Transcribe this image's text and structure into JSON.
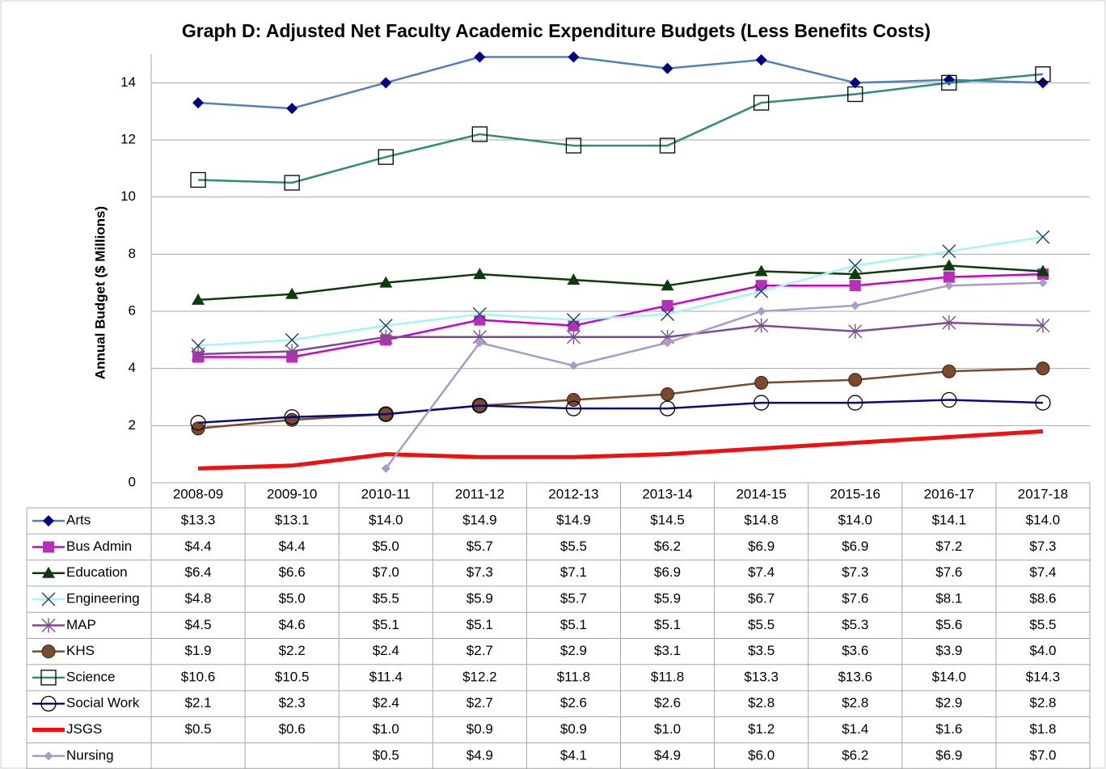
{
  "chart_data": {
    "type": "line",
    "title": "Graph D: Adjusted Net Faculty Academic Expenditure Budgets (Less Benefits Costs)",
    "y_label": "Annual Budget ($ Millions)",
    "categories": [
      "2008-09",
      "2009-10",
      "2010-11",
      "2011-12",
      "2012-13",
      "2013-14",
      "2014-15",
      "2015-16",
      "2016-17",
      "2017-18"
    ],
    "ylim": [
      0,
      15
    ],
    "yticks": [
      0,
      2,
      4,
      6,
      8,
      10,
      12,
      14
    ],
    "grid": true,
    "series": [
      {
        "name": "Arts",
        "color": "#4f81bd",
        "marker": "diamond",
        "marker_color": "#000080",
        "values": [
          13.3,
          13.1,
          14.0,
          14.9,
          14.9,
          14.5,
          14.8,
          14.0,
          14.1,
          14.0
        ],
        "value_labels": [
          "$13.3",
          "$13.1",
          "$14.0",
          "$14.9",
          "$14.9",
          "$14.5",
          "$14.8",
          "$14.0",
          "$14.1",
          "$14.0"
        ]
      },
      {
        "name": "Bus Admin",
        "color": "#cc00cc",
        "marker": "square",
        "marker_color": "#b530b5",
        "values": [
          4.4,
          4.4,
          5.0,
          5.7,
          5.5,
          6.2,
          6.9,
          6.9,
          7.2,
          7.3
        ],
        "value_labels": [
          "$4.4",
          "$4.4",
          "$5.0",
          "$5.7",
          "$5.5",
          "$6.2",
          "$6.9",
          "$6.9",
          "$7.2",
          "$7.3"
        ]
      },
      {
        "name": "Education",
        "color": "#0d3b0d",
        "marker": "triangle",
        "marker_color": "#0d3b0d",
        "values": [
          6.4,
          6.6,
          7.0,
          7.3,
          7.1,
          6.9,
          7.4,
          7.3,
          7.6,
          7.4
        ],
        "value_labels": [
          "$6.4",
          "$6.6",
          "$7.0",
          "$7.3",
          "$7.1",
          "$6.9",
          "$7.4",
          "$7.3",
          "$7.6",
          "$7.4"
        ]
      },
      {
        "name": "Engineering",
        "color": "#a6f4f4",
        "marker": "x",
        "marker_color": "#1f3f5f",
        "values": [
          4.8,
          5.0,
          5.5,
          5.9,
          5.7,
          5.9,
          6.7,
          7.6,
          8.1,
          8.6
        ],
        "value_labels": [
          "$4.8",
          "$5.0",
          "$5.5",
          "$5.9",
          "$5.7",
          "$5.9",
          "$6.7",
          "$7.6",
          "$8.1",
          "$8.6"
        ]
      },
      {
        "name": "MAP",
        "color": "#7d4b91",
        "marker": "star",
        "marker_color": "#7d4b91",
        "values": [
          4.5,
          4.6,
          5.1,
          5.1,
          5.1,
          5.1,
          5.5,
          5.3,
          5.6,
          5.5
        ],
        "value_labels": [
          "$4.5",
          "$4.6",
          "$5.1",
          "$5.1",
          "$5.1",
          "$5.1",
          "$5.5",
          "$5.3",
          "$5.6",
          "$5.5"
        ]
      },
      {
        "name": "KHS",
        "color": "#7a4a30",
        "marker": "circle",
        "marker_color": "#7a4a30",
        "values": [
          1.9,
          2.2,
          2.4,
          2.7,
          2.9,
          3.1,
          3.5,
          3.6,
          3.9,
          4.0
        ],
        "value_labels": [
          "$1.9",
          "$2.2",
          "$2.4",
          "$2.7",
          "$2.9",
          "$3.1",
          "$3.5",
          "$3.6",
          "$3.9",
          "$4.0"
        ]
      },
      {
        "name": "Science",
        "color": "#2e8b7a",
        "marker": "square-open",
        "marker_color": "#000000",
        "values": [
          10.6,
          10.5,
          11.4,
          12.2,
          11.8,
          11.8,
          13.3,
          13.6,
          14.0,
          14.3
        ],
        "value_labels": [
          "$10.6",
          "$10.5",
          "$11.4",
          "$12.2",
          "$11.8",
          "$11.8",
          "$13.3",
          "$13.6",
          "$14.0",
          "$14.3"
        ]
      },
      {
        "name": "Social Work",
        "color": "#0a0a80",
        "marker": "circle-open",
        "marker_color": "#000000",
        "values": [
          2.1,
          2.3,
          2.4,
          2.7,
          2.6,
          2.6,
          2.8,
          2.8,
          2.9,
          2.8
        ],
        "value_labels": [
          "$2.1",
          "$2.3",
          "$2.4",
          "$2.7",
          "$2.6",
          "$2.6",
          "$2.8",
          "$2.8",
          "$2.9",
          "$2.8"
        ]
      },
      {
        "name": "JSGS",
        "color": "#ee1111",
        "line_width": 5,
        "values": [
          0.5,
          0.6,
          1.0,
          0.9,
          0.9,
          1.0,
          1.2,
          1.4,
          1.6,
          1.8
        ],
        "value_labels": [
          "$0.5",
          "$0.6",
          "$1.0",
          "$0.9",
          "$0.9",
          "$1.0",
          "$1.2",
          "$1.4",
          "$1.6",
          "$1.8"
        ]
      },
      {
        "name": "Nursing",
        "color": "#a99bc9",
        "marker": "diamond-small",
        "marker_color": "#a99bc9",
        "values": [
          null,
          null,
          0.5,
          4.9,
          4.1,
          4.9,
          6.0,
          6.2,
          6.9,
          7.0
        ],
        "value_labels": [
          null,
          null,
          "$0.5",
          "$4.9",
          "$4.1",
          "$4.9",
          "$6.0",
          "$6.2",
          "$6.9",
          "$7.0"
        ]
      }
    ]
  }
}
